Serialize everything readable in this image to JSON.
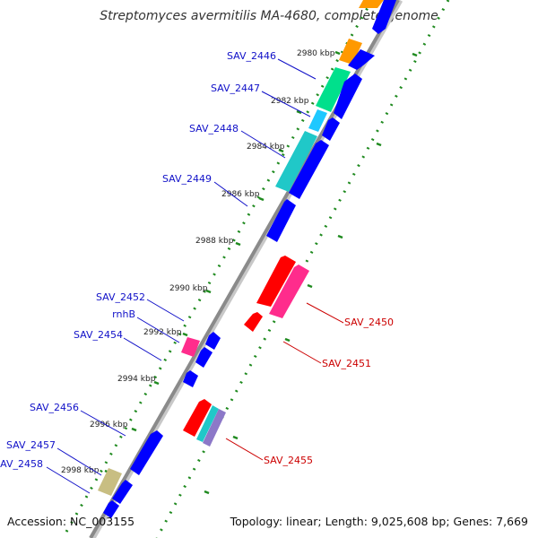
{
  "title": "Streptomyces avermitilis MA-4680, complete genome",
  "footer": {
    "accession": "Accession: NC_003155",
    "summary": "Topology: linear; Length: 9,025,608 bp; Genes: 7,669"
  },
  "colors": {
    "backbone": "#8a8a8a",
    "scale_dots": "#1f8a1f",
    "left_label": "#1010c8",
    "right_label": "#cc0000"
  },
  "ruler_marks": [
    {
      "label": "2980 kbp",
      "kbp": 2980
    },
    {
      "label": "2982 kbp",
      "kbp": 2982
    },
    {
      "label": "2984 kbp",
      "kbp": 2984
    },
    {
      "label": "2986 kbp",
      "kbp": 2986
    },
    {
      "label": "2988 kbp",
      "kbp": 2988
    },
    {
      "label": "2990 kbp",
      "kbp": 2990
    },
    {
      "label": "2992 kbp",
      "kbp": 2992
    },
    {
      "label": "2994 kbp",
      "kbp": 2994
    },
    {
      "label": "2996 kbp",
      "kbp": 2996
    },
    {
      "label": "2998 kbp",
      "kbp": 2998
    }
  ],
  "gene_labels": [
    {
      "text": "SAV_2446",
      "side": "left"
    },
    {
      "text": "SAV_2447",
      "side": "left"
    },
    {
      "text": "SAV_2448",
      "side": "left"
    },
    {
      "text": "SAV_2449",
      "side": "left"
    },
    {
      "text": "SAV_2452",
      "side": "left"
    },
    {
      "text": "rnhB",
      "side": "left"
    },
    {
      "text": "SAV_2454",
      "side": "left"
    },
    {
      "text": "SAV_2456",
      "side": "left"
    },
    {
      "text": "SAV_2457",
      "side": "left"
    },
    {
      "text": "SAV_2458",
      "side": "left"
    },
    {
      "text": "SAV_2450",
      "side": "right"
    },
    {
      "text": "SAV_2451",
      "side": "right"
    },
    {
      "text": "SAV_2455",
      "side": "right"
    }
  ]
}
